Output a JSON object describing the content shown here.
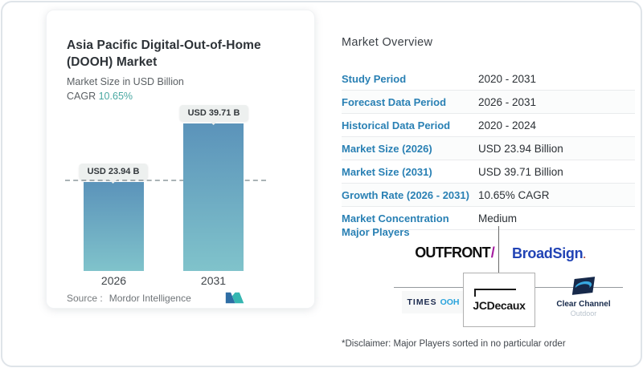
{
  "colors": {
    "accent-blue": "#2980b4",
    "accent-teal": "#49a8a2",
    "bar-top": "#5b93ba",
    "bar-bottom": "#80c3cb",
    "pill-bg": "#edf0ef",
    "broadsign-blue": "#2143b5",
    "outfront-slash": "#a31a9e",
    "times-blue": "#29a3dc",
    "cc-navy": "#16294a",
    "cc-swoosh": "#38a8e0",
    "mordor-blue": "#2e6da4",
    "mordor-teal": "#36b6b1"
  },
  "left_card": {
    "title": "Asia Pacific Digital-Out-of-Home (DOOH) Market",
    "subtitle": "Market Size in USD Billion",
    "cagr_label": "CAGR",
    "cagr_value": "10.65%",
    "source_label": "Source :",
    "source_name": "Mordor Intelligence"
  },
  "chart_data": {
    "type": "bar",
    "title": "Asia Pacific Digital-Out-of-Home (DOOH) Market",
    "ylabel": "Market Size in USD Billion",
    "unit": "USD Billion",
    "categories": [
      "2026",
      "2031"
    ],
    "values": [
      23.94,
      39.71
    ],
    "bar_labels": [
      "USD 23.94 B",
      "USD 39.71 B"
    ],
    "cagr_percent": 10.65,
    "reference_line": {
      "style": "dashed",
      "at_value": 23.94
    },
    "grid": false,
    "legend": false
  },
  "overview": {
    "heading": "Market Overview",
    "rows": [
      {
        "label": "Study Period",
        "value": "2020 - 2031"
      },
      {
        "label": "Forecast Data Period",
        "value": "2026 - 2031"
      },
      {
        "label": "Historical Data Period",
        "value": "2020 - 2024"
      },
      {
        "label": "Market Size (2026)",
        "value": "USD 23.94 Billion"
      },
      {
        "label": "Market Size (2031)",
        "value": "USD 39.71 Billion"
      },
      {
        "label": "Growth Rate (2026 - 2031)",
        "value": "10.65% CAGR"
      },
      {
        "label": "Market Concentration",
        "value": "Medium"
      }
    ],
    "major_players_label": "Major Players",
    "players": {
      "outfront": {
        "text": "OUTFRONT",
        "slash": "/"
      },
      "broadsign": {
        "text": "BroadSign",
        "dot": "."
      },
      "times_ooh": {
        "times": "TIMES",
        "ooh": "OOH"
      },
      "jcdecaux": {
        "text": "JCDecaux"
      },
      "clear_channel": {
        "line1": "Clear Channel",
        "line2": "Outdoor"
      }
    },
    "disclaimer": "*Disclaimer: Major Players sorted in no particular order"
  }
}
